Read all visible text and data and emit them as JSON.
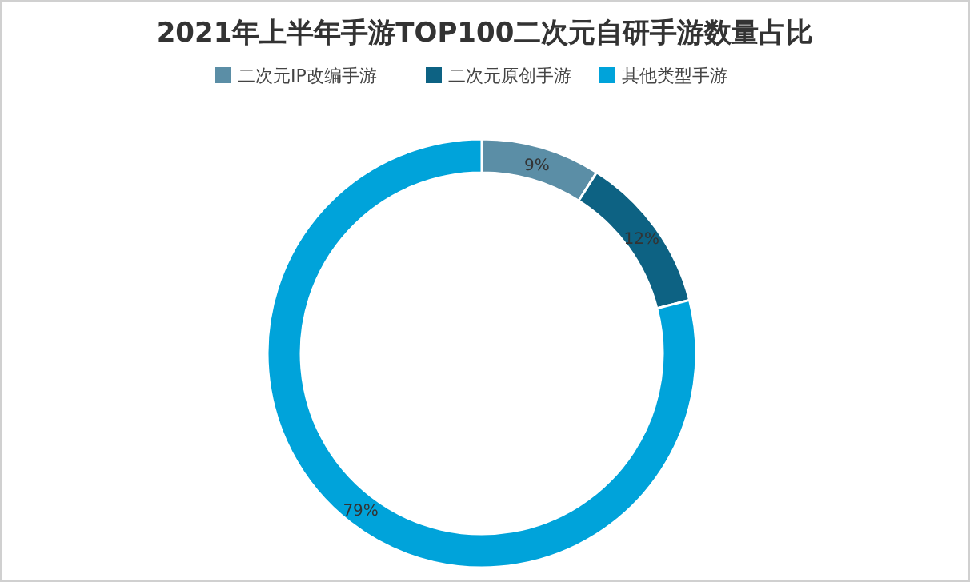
{
  "chart_data": {
    "type": "donut",
    "title": "2021年上半年手游TOP100二次元自研手游数量占比",
    "categories": [
      "二次元IP改编手游",
      "二次元原创手游",
      "其他类型手游"
    ],
    "values": [
      9,
      12,
      79
    ],
    "colors": [
      "#5b8ea6",
      "#0d6283",
      "#00a3da"
    ],
    "value_labels": [
      "9%",
      "12%",
      "79%"
    ],
    "legend": "top"
  }
}
